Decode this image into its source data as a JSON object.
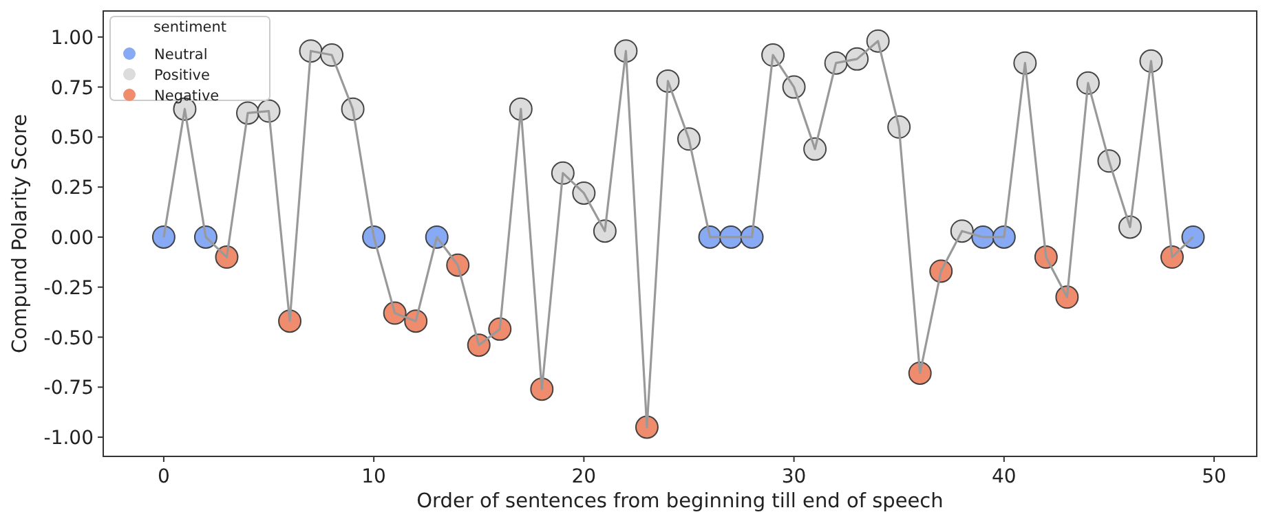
{
  "chart_data": {
    "type": "scatter",
    "xlabel": "Order of sentences from beginning till end of speech",
    "ylabel": "Compund Polarity Score",
    "legend_title": "sentiment",
    "legend": "top left",
    "marker": "circle",
    "grid": false,
    "xlim": [
      -2.88,
      52.03
    ],
    "ylim": [
      -1.096,
      1.13
    ],
    "xticks": [
      0,
      10,
      20,
      30,
      40,
      50
    ],
    "yticks": [
      {
        "value": -1,
        "label": "-1.00"
      },
      {
        "value": -0.75,
        "label": "-0.75"
      },
      {
        "value": -0.5,
        "label": "-0.50"
      },
      {
        "value": -0.25,
        "label": "-0.25"
      },
      {
        "value": 0,
        "label": "0.00"
      },
      {
        "value": 0.25,
        "label": "0.25"
      },
      {
        "value": 0.5,
        "label": "0.50"
      },
      {
        "value": 0.75,
        "label": "0.75"
      },
      {
        "value": 1,
        "label": "1.00"
      }
    ],
    "series": [
      {
        "type": "line",
        "marker": "none",
        "color": "#999999",
        "x": [
          0,
          1,
          2,
          3,
          4,
          5,
          6,
          7,
          8,
          9,
          10,
          11,
          12,
          13,
          14,
          15,
          16,
          17,
          18,
          19,
          20,
          21,
          22,
          23,
          24,
          25,
          26,
          27,
          28,
          29,
          30,
          31,
          32,
          33,
          34,
          35,
          36,
          37,
          38,
          39,
          40,
          41,
          42,
          43,
          44,
          45,
          46,
          47,
          48,
          49
        ],
        "values": [
          0,
          0.64,
          0,
          -0.1,
          0.62,
          0.63,
          -0.42,
          0.93,
          0.91,
          0.64,
          0,
          -0.38,
          -0.42,
          0,
          -0.14,
          -0.54,
          -0.46,
          0.64,
          -0.76,
          0.32,
          0.22,
          0.03,
          0.93,
          -0.95,
          0.78,
          0.49,
          0,
          0,
          0,
          0.91,
          0.75,
          0.44,
          0.87,
          0.89,
          0.98,
          0.55,
          -0.68,
          -0.17,
          0.03,
          0,
          0,
          0.87,
          -0.1,
          -0.3,
          0.77,
          0.38,
          0.05,
          0.88,
          -0.1,
          0
        ]
      },
      {
        "name": "Neutral",
        "color": "#88aaf5",
        "x": [
          0,
          2,
          10,
          13,
          26,
          27,
          28,
          39,
          40,
          49
        ],
        "values": [
          0,
          0,
          0,
          0,
          0,
          0,
          0,
          0,
          0,
          0
        ]
      },
      {
        "name": "Positive",
        "color": "#dcdcdc",
        "x": [
          1,
          4,
          5,
          7,
          8,
          9,
          17,
          19,
          20,
          21,
          22,
          24,
          25,
          29,
          30,
          31,
          32,
          33,
          34,
          35,
          38,
          41,
          44,
          45,
          46,
          47
        ],
        "values": [
          0.64,
          0.62,
          0.63,
          0.93,
          0.91,
          0.64,
          0.64,
          0.32,
          0.22,
          0.03,
          0.93,
          0.78,
          0.49,
          0.91,
          0.75,
          0.44,
          0.87,
          0.89,
          0.98,
          0.55,
          0.03,
          0.87,
          0.77,
          0.38,
          0.05,
          0.88
        ]
      },
      {
        "name": "Negative",
        "color": "#f08c6e",
        "x": [
          3,
          6,
          11,
          12,
          14,
          15,
          16,
          18,
          23,
          36,
          37,
          42,
          43,
          48
        ],
        "values": [
          -0.1,
          -0.42,
          -0.38,
          -0.42,
          -0.14,
          -0.54,
          -0.46,
          -0.76,
          -0.95,
          -0.68,
          -0.17,
          -0.1,
          -0.3,
          -0.1
        ]
      }
    ]
  }
}
